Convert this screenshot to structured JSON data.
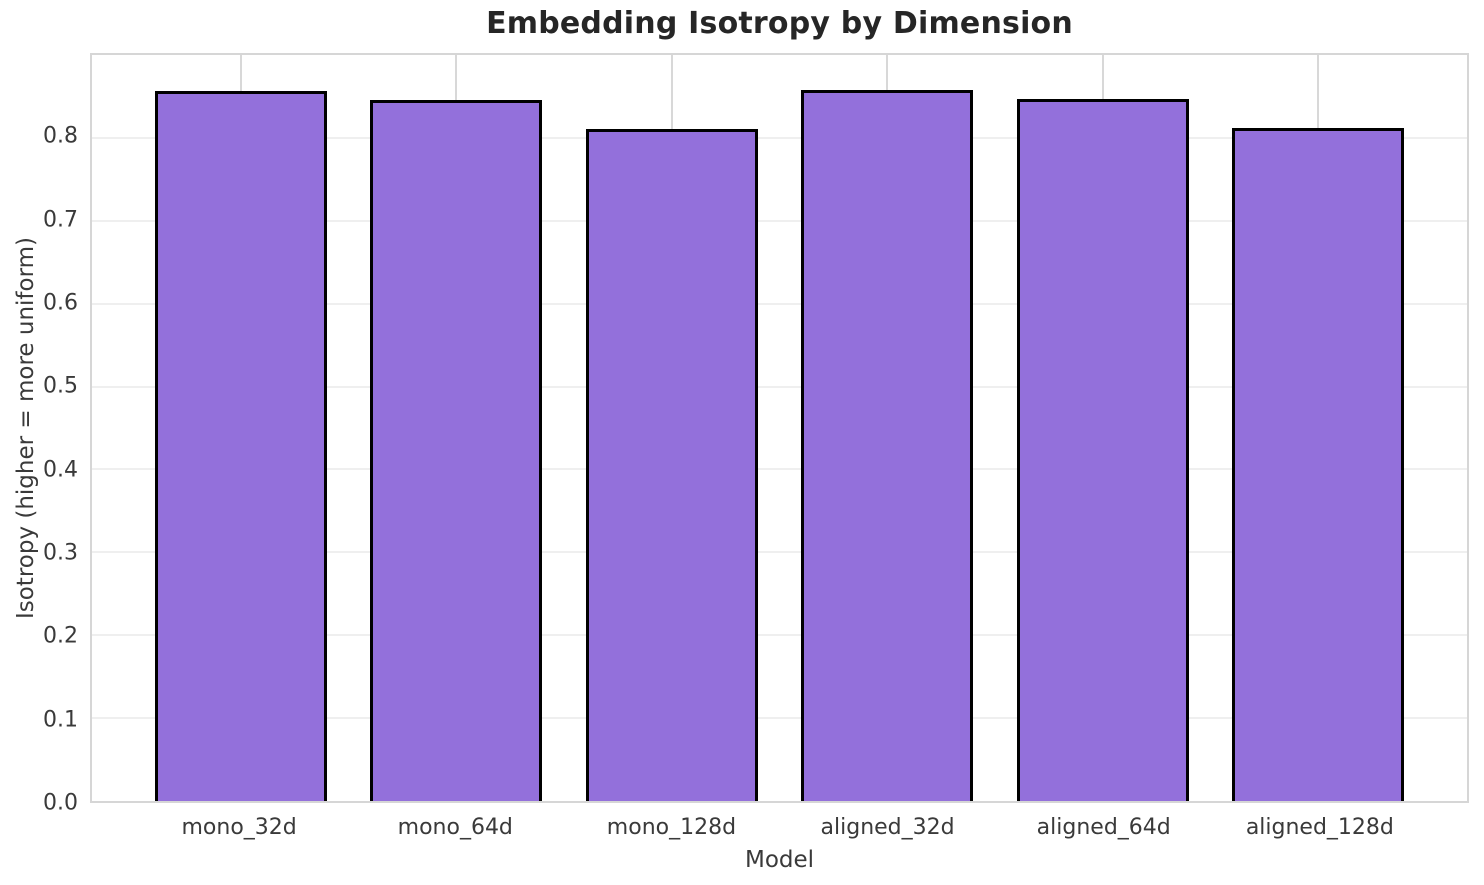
{
  "chart_data": {
    "type": "bar",
    "title": "Embedding Isotropy by Dimension",
    "xlabel": "Model",
    "ylabel": "Isotropy (higher = more uniform)",
    "categories": [
      "mono_32d",
      "mono_64d",
      "mono_128d",
      "aligned_32d",
      "aligned_64d",
      "aligned_128d"
    ],
    "values": [
      0.857,
      0.846,
      0.811,
      0.858,
      0.847,
      0.812
    ],
    "ylim": [
      0.0,
      0.9
    ],
    "yticks": [
      0.0,
      0.1,
      0.2,
      0.3,
      0.4,
      0.5,
      0.6,
      0.7,
      0.8
    ],
    "ytick_labels": [
      "0.0",
      "0.1",
      "0.2",
      "0.3",
      "0.4",
      "0.5",
      "0.6",
      "0.7",
      "0.8"
    ],
    "grid": "both",
    "legend": "none",
    "colors": {
      "bar_fill": "#9370DB",
      "bar_edge": "#000000",
      "grid_horizontal": "#efefef",
      "grid_vertical": "#d8d8d8",
      "spine": "#d6d6d6",
      "title_text": "#262626",
      "tick_text": "#3a3a3a",
      "background": "#ffffff"
    }
  }
}
